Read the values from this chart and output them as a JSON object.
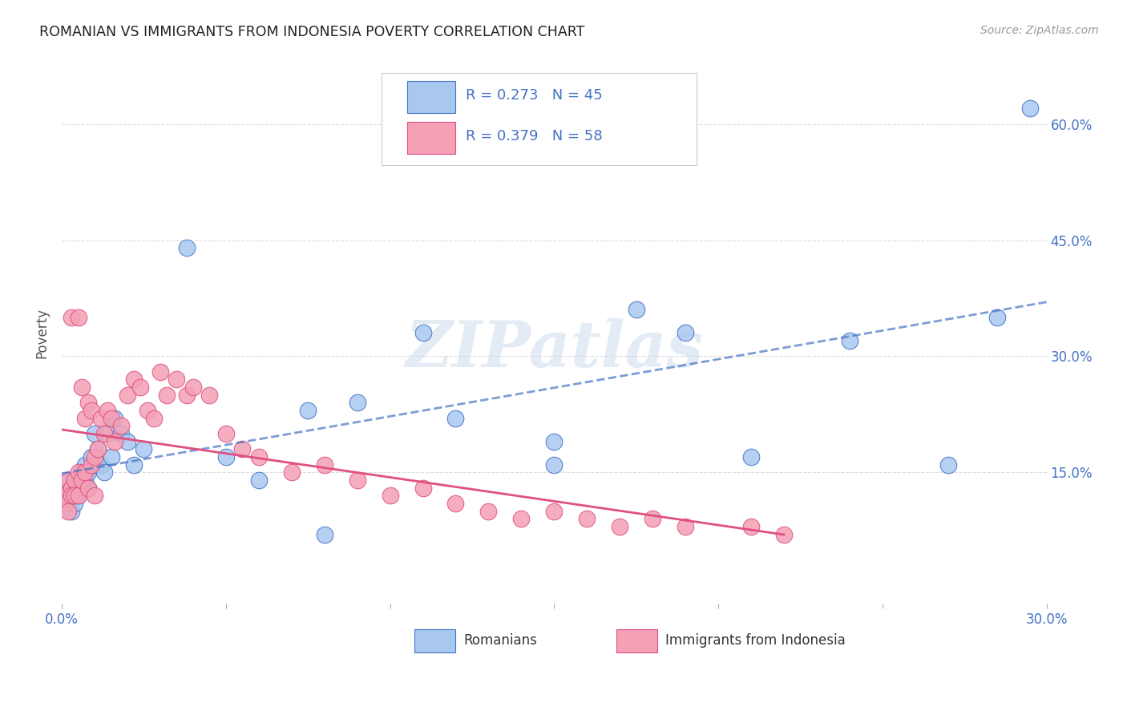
{
  "title": "ROMANIAN VS IMMIGRANTS FROM INDONESIA POVERTY CORRELATION CHART",
  "source": "Source: ZipAtlas.com",
  "ylabel": "Poverty",
  "ytick_labels": [
    "15.0%",
    "30.0%",
    "45.0%",
    "60.0%"
  ],
  "ytick_positions": [
    0.15,
    0.3,
    0.45,
    0.6
  ],
  "xlim": [
    0.0,
    0.3
  ],
  "ylim": [
    -0.02,
    0.68
  ],
  "legend_label1": "Romanians",
  "legend_label2": "Immigrants from Indonesia",
  "color_romanian": "#A8C8F0",
  "color_indonesia": "#F4A0B5",
  "color_trendline_romanian": "#4472C4",
  "color_trendline_indonesia": "#E05080",
  "watermark": "ZIPatlas",
  "romanian_x": [
    0.001,
    0.002,
    0.002,
    0.003,
    0.003,
    0.004,
    0.004,
    0.005,
    0.005,
    0.006,
    0.006,
    0.007,
    0.007,
    0.008,
    0.008,
    0.009,
    0.01,
    0.01,
    0.011,
    0.012,
    0.013,
    0.014,
    0.015,
    0.016,
    0.018,
    0.02,
    0.022,
    0.025,
    0.038,
    0.05,
    0.06,
    0.075,
    0.09,
    0.11,
    0.12,
    0.15,
    0.175,
    0.19,
    0.21,
    0.24,
    0.27,
    0.285,
    0.295,
    0.15,
    0.08
  ],
  "romanian_y": [
    0.12,
    0.11,
    0.14,
    0.12,
    0.1,
    0.13,
    0.11,
    0.14,
    0.12,
    0.15,
    0.13,
    0.16,
    0.14,
    0.15,
    0.13,
    0.17,
    0.16,
    0.2,
    0.18,
    0.16,
    0.15,
    0.2,
    0.17,
    0.22,
    0.2,
    0.19,
    0.16,
    0.18,
    0.44,
    0.17,
    0.14,
    0.23,
    0.24,
    0.33,
    0.22,
    0.19,
    0.36,
    0.33,
    0.17,
    0.32,
    0.16,
    0.35,
    0.62,
    0.16,
    0.07
  ],
  "indonesia_x": [
    0.001,
    0.001,
    0.002,
    0.002,
    0.003,
    0.003,
    0.003,
    0.004,
    0.004,
    0.005,
    0.005,
    0.006,
    0.006,
    0.007,
    0.007,
    0.008,
    0.008,
    0.009,
    0.009,
    0.01,
    0.01,
    0.011,
    0.012,
    0.013,
    0.014,
    0.015,
    0.016,
    0.018,
    0.02,
    0.022,
    0.024,
    0.026,
    0.028,
    0.03,
    0.032,
    0.035,
    0.038,
    0.04,
    0.045,
    0.05,
    0.055,
    0.06,
    0.07,
    0.08,
    0.09,
    0.1,
    0.11,
    0.12,
    0.13,
    0.14,
    0.15,
    0.16,
    0.17,
    0.18,
    0.19,
    0.21,
    0.22,
    0.005
  ],
  "indonesia_y": [
    0.12,
    0.11,
    0.14,
    0.1,
    0.13,
    0.12,
    0.35,
    0.14,
    0.12,
    0.15,
    0.12,
    0.26,
    0.14,
    0.22,
    0.15,
    0.24,
    0.13,
    0.16,
    0.23,
    0.17,
    0.12,
    0.18,
    0.22,
    0.2,
    0.23,
    0.22,
    0.19,
    0.21,
    0.25,
    0.27,
    0.26,
    0.23,
    0.22,
    0.28,
    0.25,
    0.27,
    0.25,
    0.26,
    0.25,
    0.2,
    0.18,
    0.17,
    0.15,
    0.16,
    0.14,
    0.12,
    0.13,
    0.11,
    0.1,
    0.09,
    0.1,
    0.09,
    0.08,
    0.09,
    0.08,
    0.08,
    0.07,
    0.35
  ]
}
